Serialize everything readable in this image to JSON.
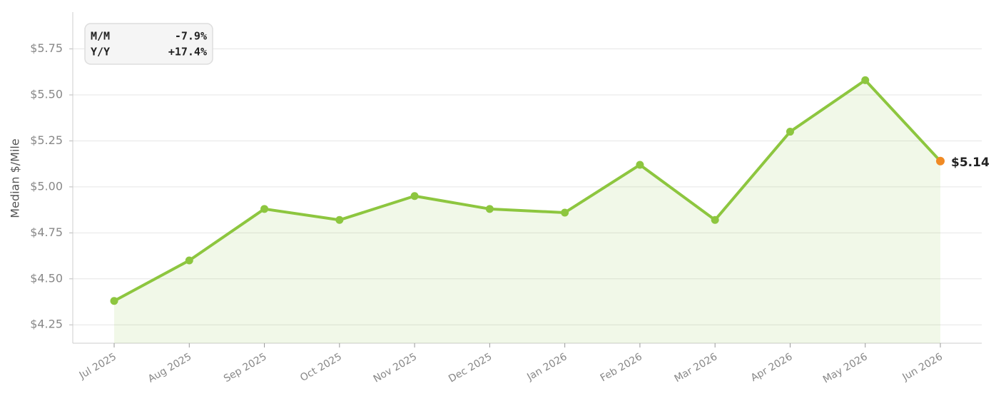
{
  "chart_data": {
    "type": "line",
    "y_label": "Median $/Mile",
    "categories": [
      "Jul 2025",
      "Aug 2025",
      "Sep 2025",
      "Oct 2025",
      "Nov 2025",
      "Dec 2025",
      "Jan 2026",
      "Feb 2026",
      "Mar 2026",
      "Apr 2026",
      "May 2026",
      "Jun 2026"
    ],
    "values": [
      4.38,
      4.6,
      4.88,
      4.82,
      4.95,
      4.88,
      4.86,
      5.12,
      4.82,
      5.3,
      5.58,
      5.14
    ],
    "value_labels": [
      null,
      null,
      null,
      null,
      null,
      null,
      null,
      null,
      null,
      null,
      null,
      "$5.14"
    ],
    "color": "#8dc63f",
    "highlight_color": "#f08a24",
    "ylim": [
      4.15,
      5.95
    ],
    "yticks": [
      {
        "value": 4.25,
        "label": "$4.25"
      },
      {
        "value": 4.5,
        "label": "$4.50"
      },
      {
        "value": 4.75,
        "label": "$4.75"
      },
      {
        "value": 5.0,
        "label": "$5.00"
      },
      {
        "value": 5.25,
        "label": "$5.25"
      },
      {
        "value": 5.5,
        "label": "$5.50"
      },
      {
        "value": 5.75,
        "label": "$5.75"
      }
    ],
    "grid": true,
    "annotations": [
      {
        "label": "M/M",
        "value": "-7.9%"
      },
      {
        "label": "Y/Y",
        "value": "+17.4%"
      }
    ]
  }
}
